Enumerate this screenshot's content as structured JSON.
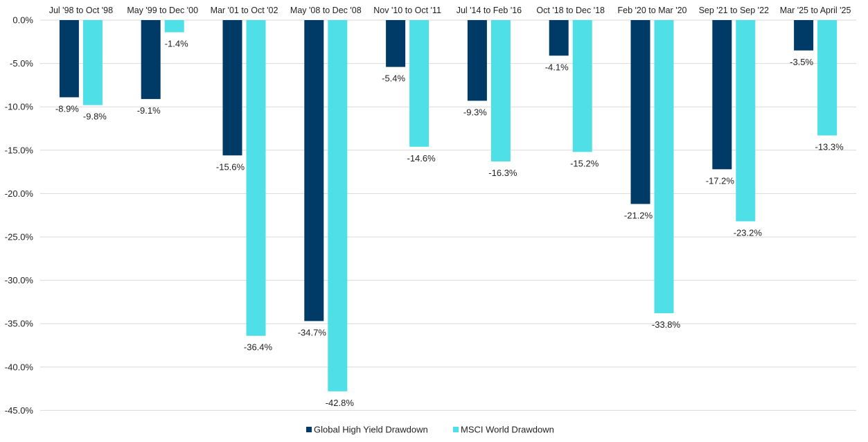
{
  "chart_data": {
    "type": "bar",
    "title": "",
    "xlabel": "",
    "ylabel": "",
    "categories": [
      "Jul '98 to Oct '98",
      "May '99 to Dec '00",
      "Mar '01 to Oct '02",
      "May '08 to Dec '08",
      "Nov '10 to Oct '11",
      "Jul '14 to Feb '16",
      "Oct '18 to Dec '18",
      "Feb '20 to Mar '20",
      "Sep '21 to Sep '22",
      "Mar '25 to April '25"
    ],
    "series": [
      {
        "name": "Global High Yield Drawdown",
        "color": "#003a66",
        "values": [
          -8.9,
          -9.1,
          -15.6,
          -34.7,
          -5.4,
          -9.3,
          -4.1,
          -21.2,
          -17.2,
          -3.5
        ],
        "labels": [
          "-8.9%",
          "-9.1%",
          "-15.6%",
          "-34.7%",
          "-5.4%",
          "-9.3%",
          "-4.1%",
          "-21.2%",
          "-17.2%",
          "-3.5%"
        ]
      },
      {
        "name": "MSCI World Drawdown",
        "color": "#4fdfe6",
        "values": [
          -9.8,
          -1.4,
          -36.4,
          -42.8,
          -14.6,
          -16.3,
          -15.2,
          -33.8,
          -23.2,
          -13.3
        ],
        "labels": [
          "-9.8%",
          "-1.4%",
          "-36.4%",
          "-42.8%",
          "-14.6%",
          "-16.3%",
          "-15.2%",
          "-33.8%",
          "-23.2%",
          "-13.3%"
        ]
      }
    ],
    "ylim": [
      -45,
      0
    ],
    "yticks": [
      0,
      -5,
      -10,
      -15,
      -20,
      -25,
      -30,
      -35,
      -40,
      -45
    ],
    "ytick_labels": [
      "0.0%",
      "-5.0%",
      "-10.0%",
      "-15.0%",
      "-20.0%",
      "-25.0%",
      "-30.0%",
      "-35.0%",
      "-40.0%",
      "-45.0%"
    ],
    "grid": true,
    "legend_position": "bottom-center"
  }
}
